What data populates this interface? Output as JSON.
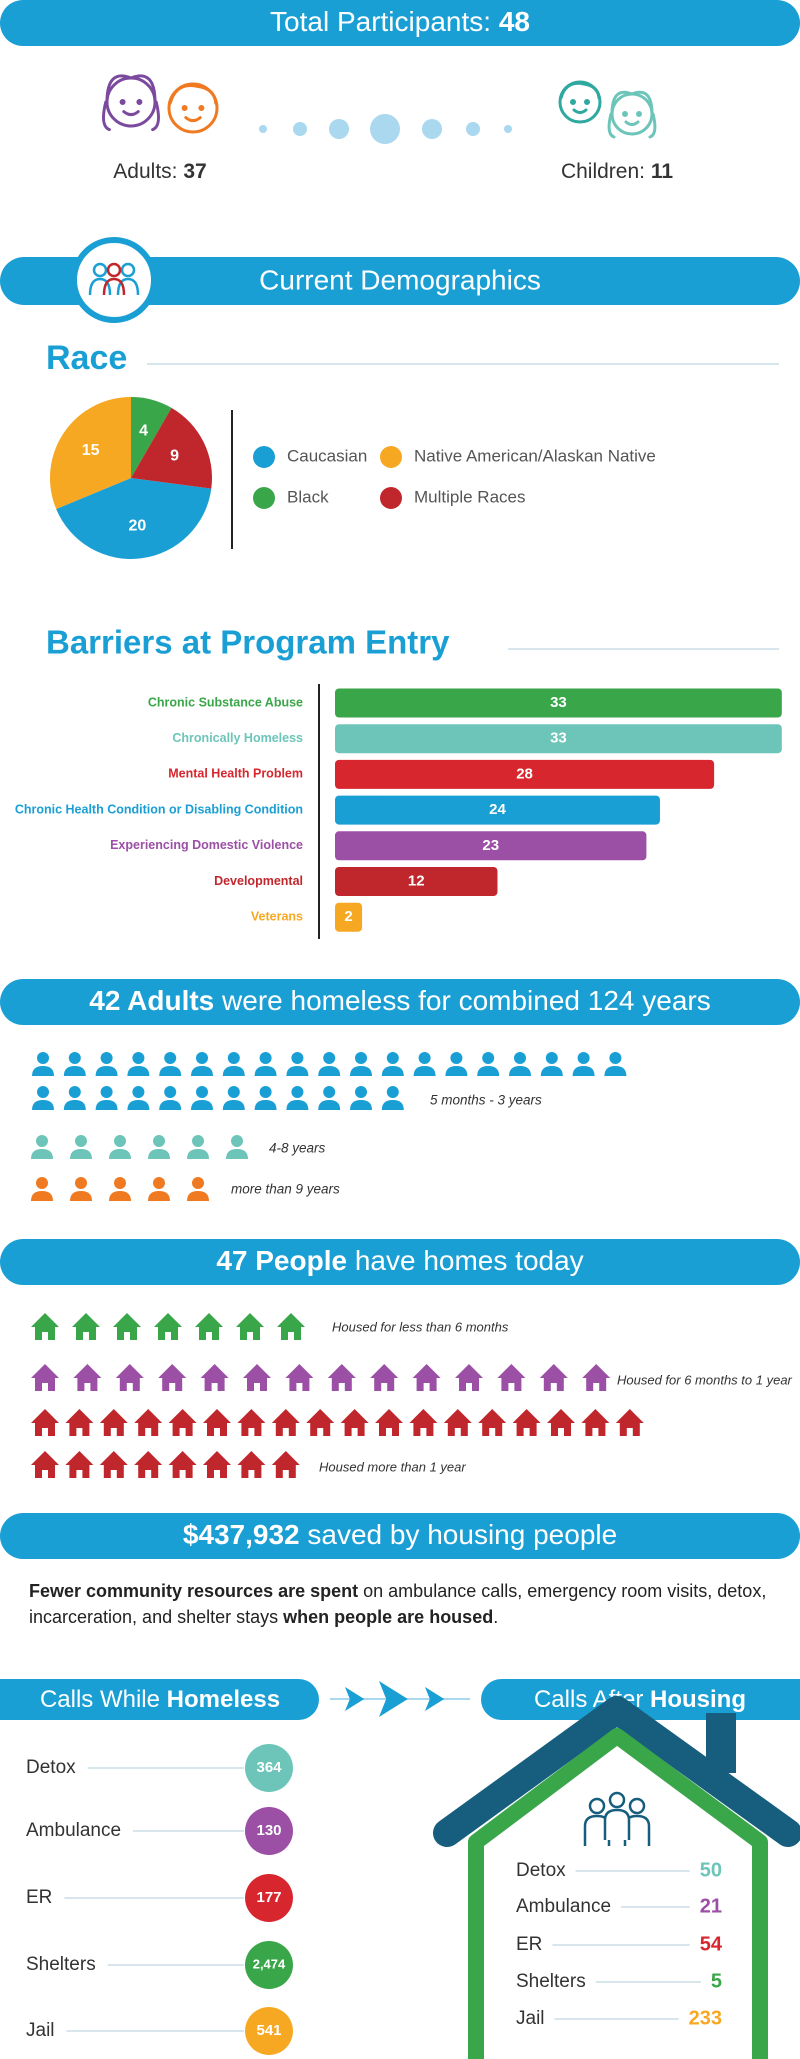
{
  "header": {
    "label": "Total Participants:",
    "value": 48
  },
  "participants": {
    "adults": {
      "label": "Adults:",
      "value": 37
    },
    "children": {
      "label": "Children:",
      "value": 11
    }
  },
  "demographics": {
    "title": "Current Demographics"
  },
  "chart_data": [
    {
      "type": "pie",
      "title": "Race",
      "categories": [
        "Caucasian",
        "Native American/Alaskan Native",
        "Black",
        "Multiple Races"
      ],
      "values": [
        20,
        15,
        4,
        9
      ],
      "colors": [
        "#1a9fd5",
        "#f7a823",
        "#3aa64a",
        "#c0272d"
      ]
    },
    {
      "type": "bar",
      "title": "Barriers at Program Entry",
      "orientation": "horizontal",
      "categories": [
        "Chronic Substance Abuse",
        "Chronically Homeless",
        "Mental Health Problem",
        "Chronic Health Condition or Disabling Condition",
        "Experiencing Domestic Violence",
        "Developmental",
        "Veterans"
      ],
      "values": [
        33,
        33,
        28,
        24,
        23,
        12,
        2
      ],
      "colors": [
        "#3aa64a",
        "#6cc5b8",
        "#d7262e",
        "#1a9fd5",
        "#9b4fa5",
        "#c0272d",
        "#f7a823"
      ]
    }
  ],
  "homeless": {
    "headline_bold": "42 Adults",
    "headline": "were homeless for combined 124 years",
    "groups": [
      {
        "label": "5 months - 3 years",
        "count": 31,
        "color": "#1a9fd5"
      },
      {
        "label": "4-8 years",
        "count": 6,
        "color": "#6cc5b8"
      },
      {
        "label": "more than 9 years",
        "count": 5,
        "color": "#f07a22"
      }
    ]
  },
  "housed": {
    "headline_bold": "47 People",
    "headline": "have homes today",
    "groups": [
      {
        "label": "Housed for less than 6 months",
        "count": 7,
        "color": "#3aa64a"
      },
      {
        "label": "Housed for 6 months to 1 year",
        "count": 14,
        "color": "#9b4fa5"
      },
      {
        "label": "Housed more than 1 year",
        "count": 26,
        "color": "#c0272d"
      }
    ]
  },
  "savings": {
    "headline_bold": "$437,932",
    "headline": "saved by housing people",
    "paragraph": [
      {
        "text": "Fewer community resources are spent",
        "bold": true
      },
      {
        "text": "on ambulance calls, emergency room visits, detox, incarceration, and shelter stays",
        "bold": false
      },
      {
        "text": "when people are housed",
        "bold": true
      },
      {
        "text": ".",
        "bold": false
      }
    ]
  },
  "calls": {
    "before": {
      "title": "Calls While",
      "title_bold": "Homeless",
      "items": [
        {
          "label": "Detox",
          "value": 364,
          "color": "#6cc5b8"
        },
        {
          "label": "Ambulance",
          "value": 130,
          "color": "#9b4fa5"
        },
        {
          "label": "ER",
          "value": 177,
          "color": "#d7262e"
        },
        {
          "label": "Shelters",
          "value": 2474,
          "value_label": "2,474",
          "color": "#3aa64a"
        },
        {
          "label": "Jail",
          "value": 541,
          "color": "#f7a823"
        }
      ]
    },
    "after": {
      "title": "Calls After",
      "title_bold": "Housing",
      "items": [
        {
          "label": "Detox",
          "value": 50,
          "color": "#6cc5b8"
        },
        {
          "label": "Ambulance",
          "value": 21,
          "color": "#9b4fa5"
        },
        {
          "label": "ER",
          "value": 54,
          "color": "#d7262e"
        },
        {
          "label": "Shelters",
          "value": 5,
          "color": "#3aa64a"
        },
        {
          "label": "Jail",
          "value": 233,
          "color": "#f7a823"
        }
      ]
    }
  }
}
